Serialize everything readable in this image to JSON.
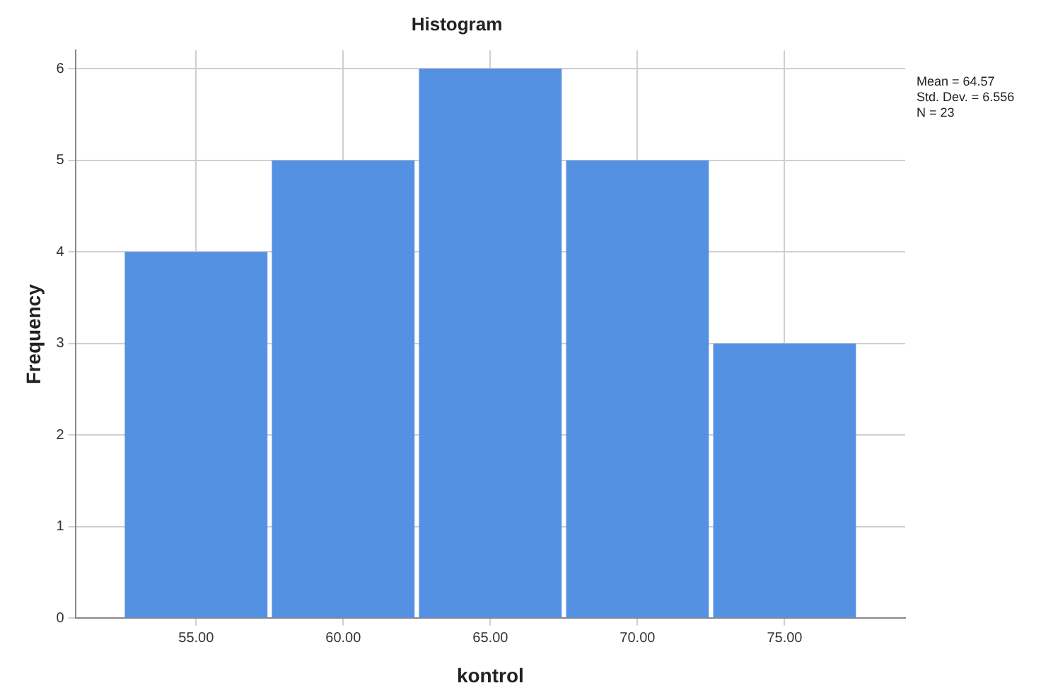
{
  "chart_data": {
    "type": "histogram",
    "title": "Histogram",
    "xlabel": "kontrol",
    "ylabel": "Frequency",
    "bins": [
      52.5,
      57.5,
      62.5,
      67.5,
      72.5,
      77.5
    ],
    "values": [
      4,
      5,
      6,
      5,
      3
    ],
    "color": "#5591e3",
    "xlim": [
      50.9,
      79.1
    ],
    "xticks": [
      {
        "value": 55,
        "label": "55.00"
      },
      {
        "value": 60,
        "label": "60.00"
      },
      {
        "value": 65,
        "label": "65.00"
      },
      {
        "value": 70,
        "label": "70.00"
      },
      {
        "value": 75,
        "label": "75.00"
      }
    ],
    "ylim": [
      0,
      6.2
    ],
    "yticks": [
      0,
      1,
      2,
      3,
      4,
      5,
      6
    ],
    "grid": true,
    "annotations": [
      "Mean = 64.57",
      "Std. Dev. = 6.556",
      "N = 23"
    ]
  }
}
